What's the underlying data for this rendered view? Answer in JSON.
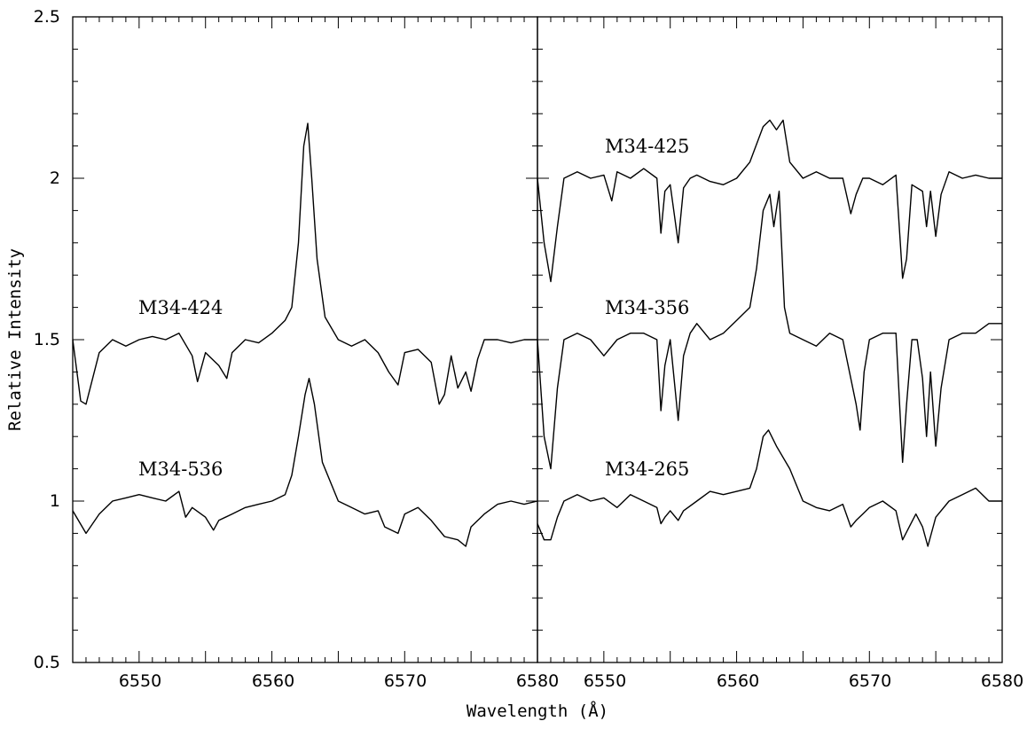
{
  "chart_data": {
    "type": "line",
    "xlabel": "Wavelength (Å)",
    "ylabel": "Relative Intensity",
    "ylim": [
      0.5,
      2.5
    ],
    "y_ticks": [
      "0.5",
      "1",
      "1.5",
      "2",
      "2.5"
    ],
    "panels": [
      {
        "xlim": [
          6545,
          6580
        ],
        "x_ticks": [
          "6550",
          "6560",
          "6570",
          "6580"
        ],
        "series": [
          {
            "name": "M34-424",
            "x": [
              6545,
              6545.6,
              6546,
              6547,
              6548,
              6549,
              6550,
              6551,
              6552,
              6553,
              6554,
              6554.4,
              6555,
              6556,
              6556.6,
              6557,
              6558,
              6559,
              6560,
              6561,
              6561.5,
              6562,
              6562.4,
              6562.7,
              6563,
              6563.4,
              6564,
              6565,
              6566,
              6567,
              6568,
              6568.8,
              6569.5,
              6570,
              6571,
              6572,
              6572.6,
              6573,
              6573.5,
              6574,
              6574.6,
              6575,
              6575.5,
              6576,
              6577,
              6578,
              6579,
              6580
            ],
            "values": [
              1.5,
              1.31,
              1.3,
              1.46,
              1.5,
              1.48,
              1.5,
              1.51,
              1.5,
              1.52,
              1.45,
              1.37,
              1.46,
              1.42,
              1.38,
              1.46,
              1.5,
              1.49,
              1.52,
              1.56,
              1.6,
              1.8,
              2.1,
              2.17,
              2.0,
              1.75,
              1.57,
              1.5,
              1.48,
              1.5,
              1.46,
              1.4,
              1.36,
              1.46,
              1.47,
              1.43,
              1.3,
              1.33,
              1.45,
              1.35,
              1.4,
              1.34,
              1.44,
              1.5,
              1.5,
              1.49,
              1.5,
              1.5
            ]
          },
          {
            "name": "M34-536",
            "x": [
              6545,
              6546,
              6547,
              6548,
              6549,
              6550,
              6551,
              6552,
              6553,
              6553.5,
              6554,
              6555,
              6555.6,
              6556,
              6557,
              6558,
              6559,
              6560,
              6561,
              6561.5,
              6562,
              6562.5,
              6562.8,
              6563.2,
              6563.8,
              6565,
              6566,
              6567,
              6568,
              6568.5,
              6569.5,
              6570,
              6571,
              6572,
              6573,
              6574,
              6574.6,
              6575,
              6576,
              6577,
              6578,
              6579,
              6580
            ],
            "values": [
              0.97,
              0.9,
              0.96,
              1.0,
              1.01,
              1.02,
              1.01,
              1.0,
              1.03,
              0.95,
              0.98,
              0.95,
              0.91,
              0.94,
              0.96,
              0.98,
              0.99,
              1.0,
              1.02,
              1.08,
              1.2,
              1.33,
              1.38,
              1.3,
              1.12,
              1.0,
              0.98,
              0.96,
              0.97,
              0.92,
              0.9,
              0.96,
              0.98,
              0.94,
              0.89,
              0.88,
              0.86,
              0.92,
              0.96,
              0.99,
              1.0,
              0.99,
              1.0
            ]
          }
        ]
      },
      {
        "xlim": [
          6545,
          6580
        ],
        "x_ticks": [
          "6550",
          "6560",
          "6570",
          "6580"
        ],
        "series": [
          {
            "name": "M34-425",
            "x": [
              6545,
              6545.5,
              6546,
              6546.5,
              6547,
              6548,
              6549,
              6550,
              6550.6,
              6551,
              6552,
              6553,
              6554,
              6554.3,
              6554.6,
              6555,
              6555.6,
              6556,
              6556.5,
              6557,
              6558,
              6559,
              6560,
              6561,
              6562,
              6562.5,
              6563,
              6563.5,
              6564,
              6565,
              6566,
              6567,
              6568,
              6568.6,
              6569,
              6569.5,
              6570,
              6571,
              6572,
              6572.5,
              6572.8,
              6573.2,
              6574,
              6574.3,
              6574.6,
              6575,
              6575.4,
              6576,
              6577,
              6578,
              6579,
              6580
            ],
            "values": [
              2.0,
              1.8,
              1.68,
              1.85,
              2.0,
              2.02,
              2.0,
              2.01,
              1.93,
              2.02,
              2.0,
              2.03,
              2.0,
              1.83,
              1.96,
              1.98,
              1.8,
              1.97,
              2.0,
              2.01,
              1.99,
              1.98,
              2.0,
              2.05,
              2.16,
              2.18,
              2.15,
              2.18,
              2.05,
              2.0,
              2.02,
              2.0,
              2.0,
              1.89,
              1.95,
              2.0,
              2.0,
              1.98,
              2.01,
              1.69,
              1.75,
              1.98,
              1.96,
              1.85,
              1.96,
              1.82,
              1.95,
              2.02,
              2.0,
              2.01,
              2.0,
              2.0
            ]
          },
          {
            "name": "M34-356",
            "x": [
              6545,
              6545.5,
              6546,
              6546.5,
              6547,
              6548,
              6549,
              6550,
              6551,
              6552,
              6553,
              6554,
              6554.3,
              6554.6,
              6555,
              6555.6,
              6556,
              6556.5,
              6557,
              6558,
              6559,
              6560,
              6561,
              6561.5,
              6562,
              6562.5,
              6562.8,
              6563.2,
              6563.6,
              6564,
              6565,
              6566,
              6567,
              6568,
              6569,
              6569.3,
              6569.6,
              6570,
              6571,
              6572,
              6572.5,
              6572.8,
              6573.2,
              6573.6,
              6574,
              6574.3,
              6574.6,
              6575,
              6575.4,
              6576,
              6577,
              6578,
              6579,
              6580
            ],
            "values": [
              1.5,
              1.2,
              1.1,
              1.35,
              1.5,
              1.52,
              1.5,
              1.45,
              1.5,
              1.52,
              1.52,
              1.5,
              1.28,
              1.42,
              1.5,
              1.25,
              1.45,
              1.52,
              1.55,
              1.5,
              1.52,
              1.56,
              1.6,
              1.72,
              1.9,
              1.95,
              1.85,
              1.96,
              1.6,
              1.52,
              1.5,
              1.48,
              1.52,
              1.5,
              1.3,
              1.22,
              1.4,
              1.5,
              1.52,
              1.52,
              1.12,
              1.3,
              1.5,
              1.5,
              1.38,
              1.2,
              1.4,
              1.17,
              1.35,
              1.5,
              1.52,
              1.52,
              1.55,
              1.55
            ]
          },
          {
            "name": "M34-265",
            "x": [
              6545,
              6545.5,
              6546,
              6546.5,
              6547,
              6548,
              6549,
              6550,
              6551,
              6552,
              6553,
              6554,
              6554.3,
              6554.6,
              6555,
              6555.6,
              6556,
              6557,
              6558,
              6559,
              6560,
              6561,
              6561.5,
              6562,
              6562.4,
              6563,
              6564,
              6565,
              6566,
              6567,
              6568,
              6568.6,
              6569,
              6569.5,
              6570,
              6571,
              6572,
              6572.5,
              6573,
              6573.5,
              6574,
              6574.4,
              6575,
              6576,
              6577,
              6578,
              6579,
              6580
            ],
            "values": [
              0.93,
              0.88,
              0.88,
              0.95,
              1.0,
              1.02,
              1.0,
              1.01,
              0.98,
              1.02,
              1.0,
              0.98,
              0.93,
              0.95,
              0.97,
              0.94,
              0.97,
              1.0,
              1.03,
              1.02,
              1.03,
              1.04,
              1.1,
              1.2,
              1.22,
              1.17,
              1.1,
              1.0,
              0.98,
              0.97,
              0.99,
              0.92,
              0.94,
              0.96,
              0.98,
              1.0,
              0.97,
              0.88,
              0.92,
              0.96,
              0.92,
              0.86,
              0.95,
              1.0,
              1.02,
              1.04,
              1.0,
              1.0
            ]
          }
        ]
      }
    ]
  }
}
